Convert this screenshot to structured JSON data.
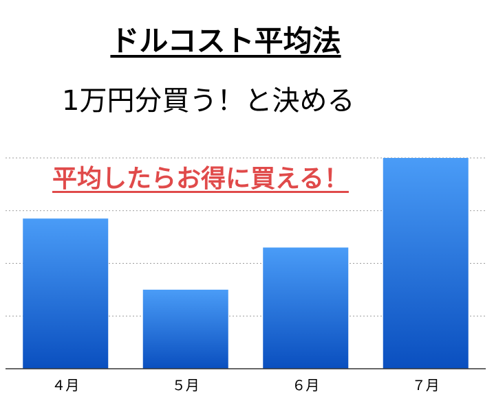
{
  "title": "ドルコスト平均法",
  "subtitle": "1万円分買う！と決める",
  "annotation": "平均したらお得に買える！",
  "colors": {
    "annotation": "#e04a4a",
    "bar_top": "#4a9cf7",
    "bar_bottom": "#0a4fbf",
    "grid": "#9a9a9a",
    "axis": "#333333"
  },
  "chart_data": {
    "type": "bar",
    "categories": [
      "４月",
      "５月",
      "６月",
      "７月"
    ],
    "values": [
      2.85,
      1.5,
      2.3,
      4.0
    ],
    "ylim": [
      0,
      4
    ],
    "grid": true,
    "legend": "none"
  }
}
